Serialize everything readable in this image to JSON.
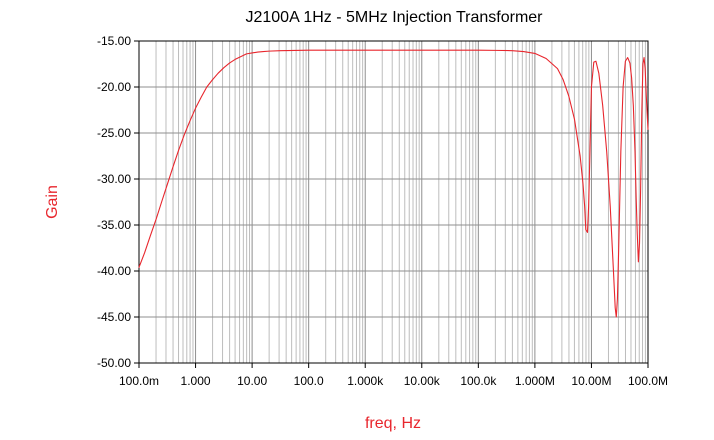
{
  "chart_data": {
    "type": "line",
    "title": "J2100A 1Hz - 5MHz Injection Transformer",
    "xlabel": "freq, Hz",
    "ylabel": "Gain",
    "x_scale": "log",
    "xlim": [
      0.1,
      100000000
    ],
    "ylim": [
      -50,
      -15
    ],
    "x_ticks": [
      0.1,
      1,
      10,
      100,
      1000,
      10000,
      100000,
      1000000,
      10000000,
      100000000
    ],
    "x_tick_labels": [
      "100.0m",
      "1.000",
      "10.00",
      "100.0",
      "1.000k",
      "10.00k",
      "100.0k",
      "1.000M",
      "10.00M",
      "100.0M"
    ],
    "y_ticks": [
      -15,
      -20,
      -25,
      -30,
      -35,
      -40,
      -45,
      -50
    ],
    "y_tick_labels": [
      "-15.00",
      "-20.00",
      "-25.00",
      "-30.00",
      "-35.00",
      "-40.00",
      "-45.00",
      "-50.00"
    ],
    "grid": true,
    "legend": "none",
    "series": [
      {
        "color": "#e8262d",
        "x": [
          0.1,
          0.126,
          0.158,
          0.2,
          0.251,
          0.316,
          0.398,
          0.5,
          0.631,
          0.794,
          1.0,
          1.26,
          1.58,
          2.0,
          2.51,
          3.16,
          3.98,
          5.0,
          6.31,
          7.94,
          10.0,
          12.6,
          15.8,
          20.0,
          31.6,
          100.0,
          1000.0,
          10000.0,
          100000.0,
          200000.0,
          398000.0,
          631000.0,
          1000000.0,
          1580000.0,
          2510000.0,
          3160000.0,
          3980000.0,
          5010000.0,
          6310000.0,
          7080000.0,
          7590000.0,
          7940000.0,
          8510000.0,
          8910000.0,
          9330000.0,
          10000000.0,
          11000000.0,
          12000000.0,
          13500000.0,
          15800000.0,
          18600000.0,
          21500000.0,
          24500000.0,
          26300000.0,
          27500000.0,
          28800000.0,
          30200000.0,
          33100000.0,
          36300000.0,
          39800000.0,
          43700000.0,
          47900000.0,
          51300000.0,
          55000000.0,
          58900000.0,
          61700000.0,
          64600000.0,
          67600000.0,
          70800000.0,
          74100000.0,
          77600000.0,
          81300000.0,
          85100000.0,
          89100000.0,
          93300000.0,
          97700000.0,
          100000000.0
        ],
        "y": [
          -39.6,
          -38.0,
          -36.2,
          -34.4,
          -32.5,
          -30.6,
          -28.7,
          -26.9,
          -25.2,
          -23.7,
          -22.3,
          -21.1,
          -20.0,
          -19.2,
          -18.5,
          -17.9,
          -17.4,
          -17.0,
          -16.7,
          -16.4,
          -16.3,
          -16.2,
          -16.15,
          -16.1,
          -16.05,
          -16.0,
          -16.0,
          -16.0,
          -16.0,
          -16.02,
          -16.05,
          -16.15,
          -16.35,
          -16.9,
          -18.0,
          -19.2,
          -21.0,
          -23.5,
          -27.5,
          -30.5,
          -33.0,
          -35.5,
          -35.8,
          -33.0,
          -28.0,
          -20.0,
          -17.3,
          -17.2,
          -18.5,
          -22.0,
          -27.0,
          -33.0,
          -40.0,
          -44.0,
          -45.0,
          -43.0,
          -38.0,
          -27.0,
          -20.0,
          -17.2,
          -16.8,
          -17.4,
          -19.0,
          -22.0,
          -27.0,
          -32.0,
          -36.0,
          -39.0,
          -37.0,
          -31.0,
          -23.0,
          -17.5,
          -16.8,
          -18.0,
          -21.0,
          -23.5,
          -24.6
        ]
      }
    ]
  }
}
